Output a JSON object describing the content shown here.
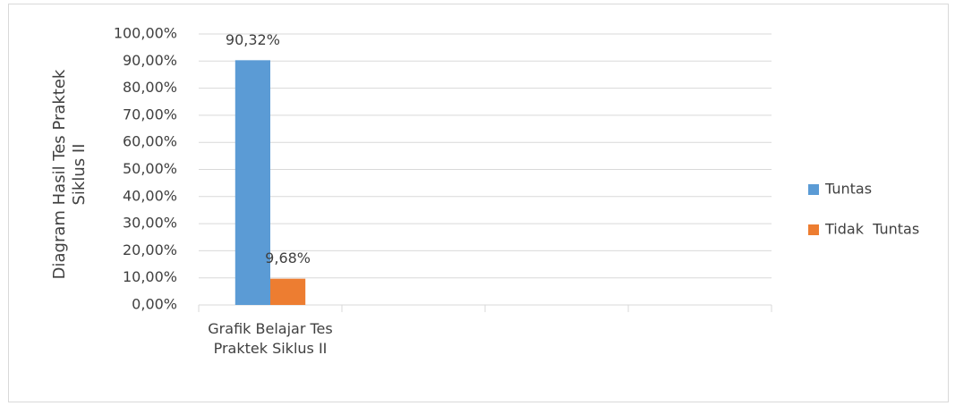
{
  "chart_data": {
    "type": "bar",
    "y_label": "Diagram Hasil Tes Praktek Siklus II",
    "categories": [
      "Grafik Belajar Tes Praktek Siklus II",
      null,
      null,
      null
    ],
    "series": [
      {
        "name": "Tuntas",
        "color": "#5b9bd5",
        "values": [
          90.32,
          null,
          null,
          null
        ],
        "value_labels": [
          "90,32%",
          null,
          null,
          null
        ]
      },
      {
        "name": "Tidak  Tuntas",
        "color": "#ed7d31",
        "values": [
          9.68,
          null,
          null,
          null
        ],
        "value_labels": [
          "9,68%",
          null,
          null,
          null
        ]
      }
    ],
    "ylim": [
      0,
      100
    ],
    "yticks": [
      {
        "value": 0,
        "label": "0,00%"
      },
      {
        "value": 10,
        "label": "10,00%"
      },
      {
        "value": 20,
        "label": "20,00%"
      },
      {
        "value": 30,
        "label": "30,00%"
      },
      {
        "value": 40,
        "label": "40,00%"
      },
      {
        "value": 50,
        "label": "50,00%"
      },
      {
        "value": 60,
        "label": "60,00%"
      },
      {
        "value": 70,
        "label": "70,00%"
      },
      {
        "value": 80,
        "label": "80,00%"
      },
      {
        "value": 90,
        "label": "90,00%"
      },
      {
        "value": 100,
        "label": "100,00%"
      }
    ],
    "grid": true,
    "legend": "right"
  }
}
